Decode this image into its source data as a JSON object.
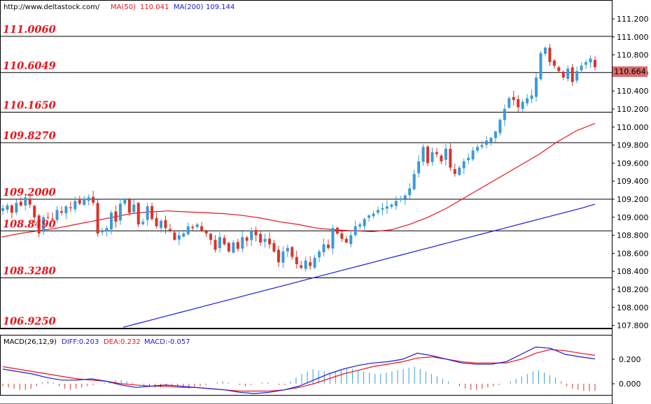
{
  "header": {
    "url": "http://www.deltastock.com/",
    "ma50_label": "MA(50)",
    "ma50_value": "110.041",
    "ma200_label": "MA(200)",
    "ma200_value": "109.144"
  },
  "price_tag": "110.664",
  "price_axis_ticks": [
    "111.200",
    "111.000",
    "110.800",
    "110.600",
    "110.400",
    "110.200",
    "110.000",
    "109.800",
    "109.600",
    "109.400",
    "109.200",
    "109.000",
    "108.800",
    "108.600",
    "108.400",
    "108.200",
    "108.000",
    "107.800"
  ],
  "macd_header": {
    "name": "MACD(26,12,9)",
    "diff": "DIFF:0.203",
    "dea": "DEA:0.232",
    "macd": "MACD:-0.057"
  },
  "macd_axis_ticks": [
    "0.200",
    "0.000"
  ],
  "colors": {
    "bull": "#3a9ad9",
    "bear": "#d9342b",
    "ma50": "#e8141c",
    "ma200": "#1a1ad6",
    "level_text": "#e8141c",
    "price_tag_bg": "#d96b6b"
  },
  "chart_data": [
    {
      "type": "candlestick",
      "title": "",
      "ylim": [
        107.7,
        111.4
      ],
      "levels": [
        {
          "value": 111.006,
          "label": "111.0060"
        },
        {
          "value": 110.6049,
          "label": "110.6049"
        },
        {
          "value": 110.165,
          "label": "110.1650"
        },
        {
          "value": 109.827,
          "label": "109.8270"
        },
        {
          "value": 109.2,
          "label": "109.2000"
        },
        {
          "value": 108.849,
          "label": "108.8490"
        },
        {
          "value": 108.328,
          "label": "108.3280"
        },
        {
          "value": 106.925,
          "label": "106.9250"
        }
      ],
      "close_path": [
        109.1,
        109.13,
        109.05,
        109.16,
        109.13,
        109.22,
        109.14,
        109.0,
        108.82,
        109.0,
        109.0,
        108.98,
        109.08,
        109.05,
        109.12,
        109.1,
        109.18,
        109.15,
        109.2,
        109.22,
        109.16,
        108.82,
        108.85,
        108.88,
        109.05,
        108.95,
        109.15,
        109.2,
        109.05,
        109.14,
        108.92,
        108.95,
        109.12,
        108.98,
        108.9,
        108.96,
        108.88,
        108.85,
        108.75,
        108.8,
        108.82,
        108.9,
        108.88,
        108.92,
        108.85,
        108.82,
        108.75,
        108.64,
        108.78,
        108.7,
        108.62,
        108.72,
        108.65,
        108.78,
        108.74,
        108.85,
        108.8,
        108.72,
        108.76,
        108.7,
        108.62,
        108.5,
        108.62,
        108.66,
        108.56,
        108.48,
        108.44,
        108.52,
        108.46,
        108.55,
        108.62,
        108.7,
        108.66,
        108.88,
        108.82,
        108.76,
        108.72,
        108.8,
        108.9,
        108.92,
        108.98,
        109.02,
        109.04,
        109.08,
        109.1,
        109.12,
        109.14,
        109.18,
        109.21,
        109.24,
        109.32,
        109.48,
        109.62,
        109.78,
        109.6,
        109.72,
        109.7,
        109.62,
        109.76,
        109.55,
        109.48,
        109.55,
        109.62,
        109.66,
        109.74,
        109.78,
        109.8,
        109.85,
        109.88,
        109.95,
        110.08,
        110.2,
        110.32,
        110.3,
        110.22,
        110.28,
        110.32,
        110.35,
        110.55,
        110.82,
        110.88,
        110.72,
        110.68,
        110.62,
        110.55,
        110.65,
        110.5,
        110.62,
        110.68,
        110.72,
        110.76,
        110.664
      ],
      "ma50_path": [
        108.78,
        108.82,
        108.85,
        108.88,
        108.92,
        108.96,
        109.0,
        109.04,
        109.06,
        109.07,
        109.06,
        109.05,
        109.04,
        109.02,
        108.99,
        108.95,
        108.92,
        108.88,
        108.86,
        108.85,
        108.84,
        108.86,
        108.92,
        109.0,
        109.1,
        109.22,
        109.34,
        109.46,
        109.58,
        109.7,
        109.84,
        109.96,
        110.04
      ],
      "ma200_path": [
        107.78,
        107.82,
        107.86,
        107.9,
        107.94,
        107.98,
        108.02,
        108.06,
        108.1,
        108.14,
        108.18,
        108.22,
        108.26,
        108.3,
        108.34,
        108.38,
        108.42,
        108.46,
        108.5,
        108.54,
        108.58,
        108.62,
        108.66,
        108.7,
        108.74,
        108.78,
        108.82,
        108.86,
        108.9,
        108.94,
        108.98,
        109.02,
        109.06,
        109.1,
        109.144
      ]
    },
    {
      "type": "macd",
      "ylim": [
        -0.1,
        0.35
      ],
      "diff_path": [
        0.12,
        0.1,
        0.08,
        0.05,
        0.03,
        0.03,
        0.04,
        0.02,
        -0.01,
        -0.03,
        -0.02,
        -0.01,
        -0.02,
        -0.03,
        -0.04,
        -0.05,
        -0.07,
        -0.08,
        -0.07,
        -0.05,
        -0.02,
        0.03,
        0.08,
        0.12,
        0.15,
        0.17,
        0.18,
        0.2,
        0.25,
        0.23,
        0.2,
        0.17,
        0.16,
        0.16,
        0.18,
        0.24,
        0.3,
        0.29,
        0.24,
        0.22,
        0.203
      ],
      "dea_path": [
        0.14,
        0.12,
        0.1,
        0.08,
        0.06,
        0.04,
        0.03,
        0.02,
        0.0,
        -0.01,
        -0.02,
        -0.02,
        -0.03,
        -0.03,
        -0.04,
        -0.05,
        -0.06,
        -0.06,
        -0.06,
        -0.05,
        -0.03,
        0.0,
        0.04,
        0.08,
        0.11,
        0.14,
        0.16,
        0.18,
        0.21,
        0.22,
        0.2,
        0.18,
        0.17,
        0.17,
        0.17,
        0.2,
        0.25,
        0.28,
        0.27,
        0.25,
        0.232
      ],
      "histogram": [
        -0.02,
        -0.03,
        -0.04,
        -0.05,
        -0.05,
        -0.04,
        -0.02,
        0.01,
        0.02,
        0.01,
        -0.02,
        -0.04,
        -0.05,
        -0.04,
        -0.03,
        -0.02,
        -0.01,
        0.0,
        0.01,
        0.02,
        0.03,
        0.03,
        0.02,
        0.01,
        0.0,
        -0.01,
        -0.02,
        -0.03,
        -0.03,
        -0.02,
        -0.01,
        -0.02,
        -0.03,
        -0.04,
        -0.03,
        -0.02,
        -0.01,
        0.0,
        0.01,
        0.02,
        0.01,
        0.0,
        -0.01,
        -0.02,
        -0.01,
        0.0,
        0.01,
        0.01,
        0.0,
        -0.01,
        -0.01,
        0.02,
        0.05,
        0.08,
        0.1,
        0.12,
        0.11,
        0.1,
        0.09,
        0.1,
        0.11,
        0.12,
        0.12,
        0.11,
        0.1,
        0.09,
        0.08,
        0.08,
        0.09,
        0.1,
        0.11,
        0.12,
        0.13,
        0.14,
        0.12,
        0.1,
        0.08,
        0.06,
        0.04,
        0.02,
        0.0,
        -0.02,
        -0.04,
        -0.05,
        -0.05,
        -0.04,
        -0.03,
        -0.02,
        -0.01,
        0.0,
        0.02,
        0.04,
        0.06,
        0.08,
        0.1,
        0.11,
        0.09,
        0.07,
        0.05,
        0.02,
        -0.02,
        -0.04,
        -0.05,
        -0.06,
        -0.06,
        -0.057
      ]
    }
  ]
}
